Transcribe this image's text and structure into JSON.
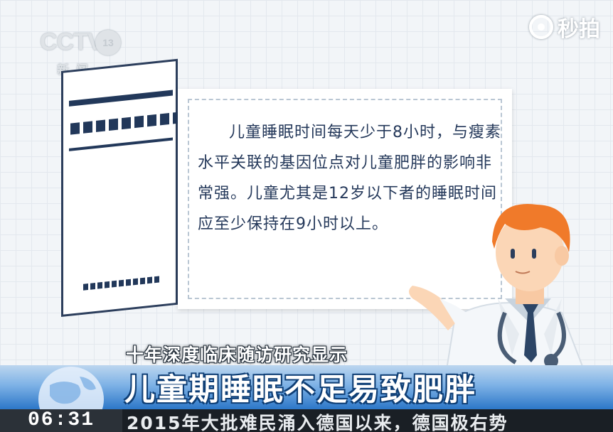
{
  "channel": {
    "logo": "CCTV",
    "channel_number": "13",
    "sub": "新闻"
  },
  "watermark": {
    "icon": "eye-icon",
    "text": "秒拍"
  },
  "card": {
    "text": "儿童睡眠时间每天少于8小时，与瘦素水平关联的基因位点对儿童肥胖的影响非常强。儿童尤其是12岁以下者的睡眠时间应至少保持在9小时以上。"
  },
  "lower_third": {
    "subtitle": "十年深度临床随访研究显示",
    "headline": "儿童期睡眠不足易致肥胖"
  },
  "ticker": {
    "time": "06:31",
    "text": "2015年大批难民涌入德国以来，德国极右势"
  },
  "colors": {
    "banner_blue": "#2c77c8",
    "navy": "#24385a",
    "doctor_hair": "#f07a2a"
  }
}
